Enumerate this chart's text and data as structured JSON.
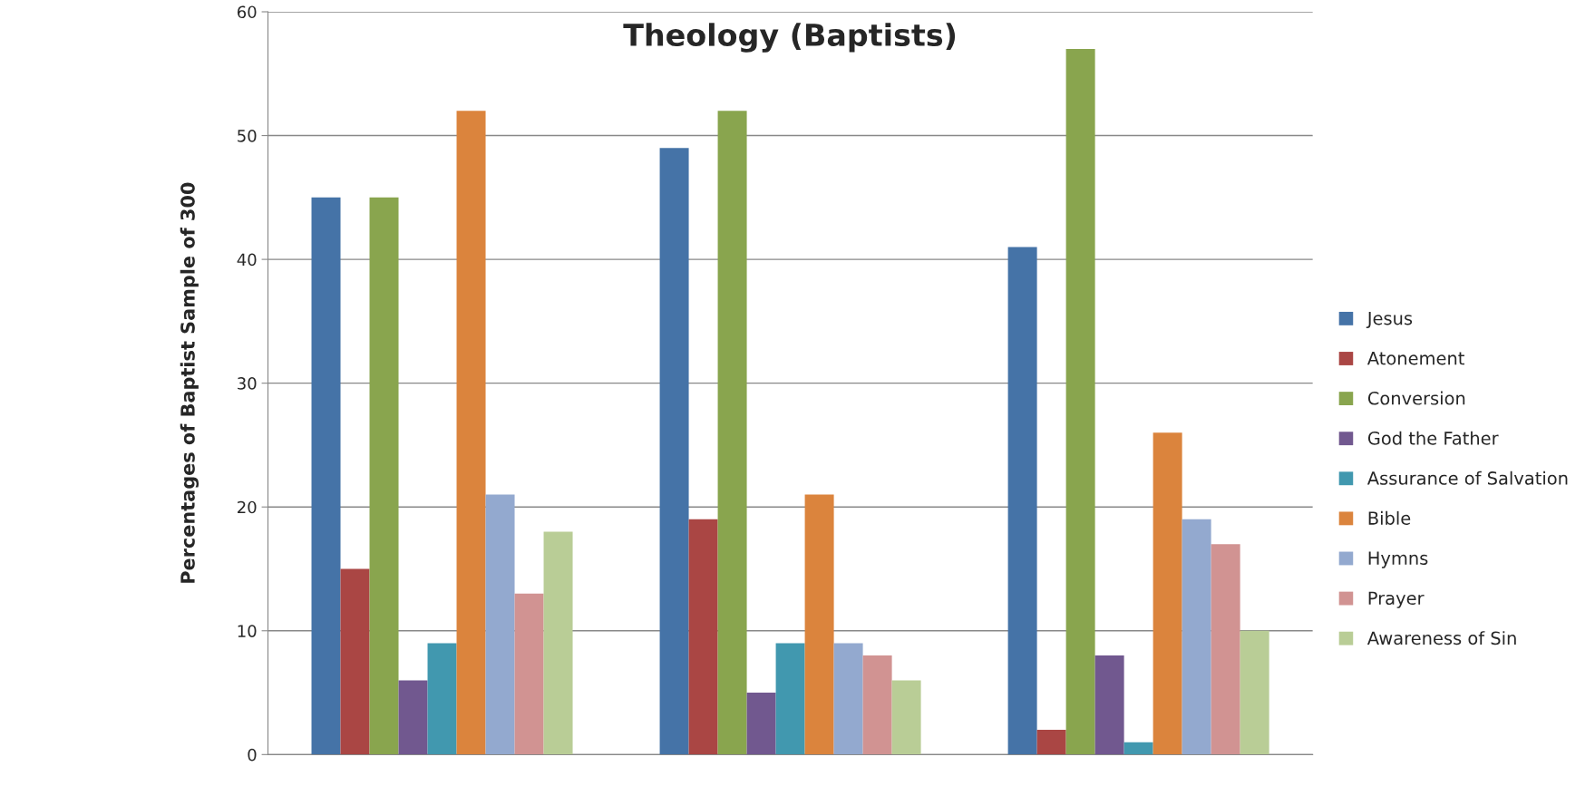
{
  "chart_data": {
    "type": "bar",
    "title": "Theology (Baptists)",
    "ylabel": "Percentages of Baptist Sample of 300",
    "categories": [
      null,
      null,
      null
    ],
    "series": [
      {
        "name": "Jesus",
        "color": "#4573a7",
        "values": [
          45,
          49,
          41
        ]
      },
      {
        "name": "Atonement",
        "color": "#aa4644",
        "values": [
          15,
          19,
          2
        ]
      },
      {
        "name": "Conversion",
        "color": "#89a54e",
        "values": [
          45,
          52,
          57
        ]
      },
      {
        "name": "God the Father",
        "color": "#71588f",
        "values": [
          6,
          5,
          8
        ]
      },
      {
        "name": "Assurance of Salvation",
        "color": "#4198af",
        "values": [
          9,
          9,
          1
        ]
      },
      {
        "name": "Bible",
        "color": "#db843d",
        "values": [
          52,
          21,
          26
        ]
      },
      {
        "name": "Hymns",
        "color": "#93a9cf",
        "values": [
          21,
          9,
          19
        ]
      },
      {
        "name": "Prayer",
        "color": "#d19392",
        "values": [
          13,
          8,
          17
        ]
      },
      {
        "name": "Awareness of Sin",
        "color": "#b9cd96",
        "values": [
          18,
          6,
          10
        ]
      }
    ],
    "ylim": [
      0,
      60
    ],
    "yticks": [
      0,
      10,
      20,
      30,
      40,
      50,
      60
    ],
    "grid": "y",
    "legend": "right"
  }
}
